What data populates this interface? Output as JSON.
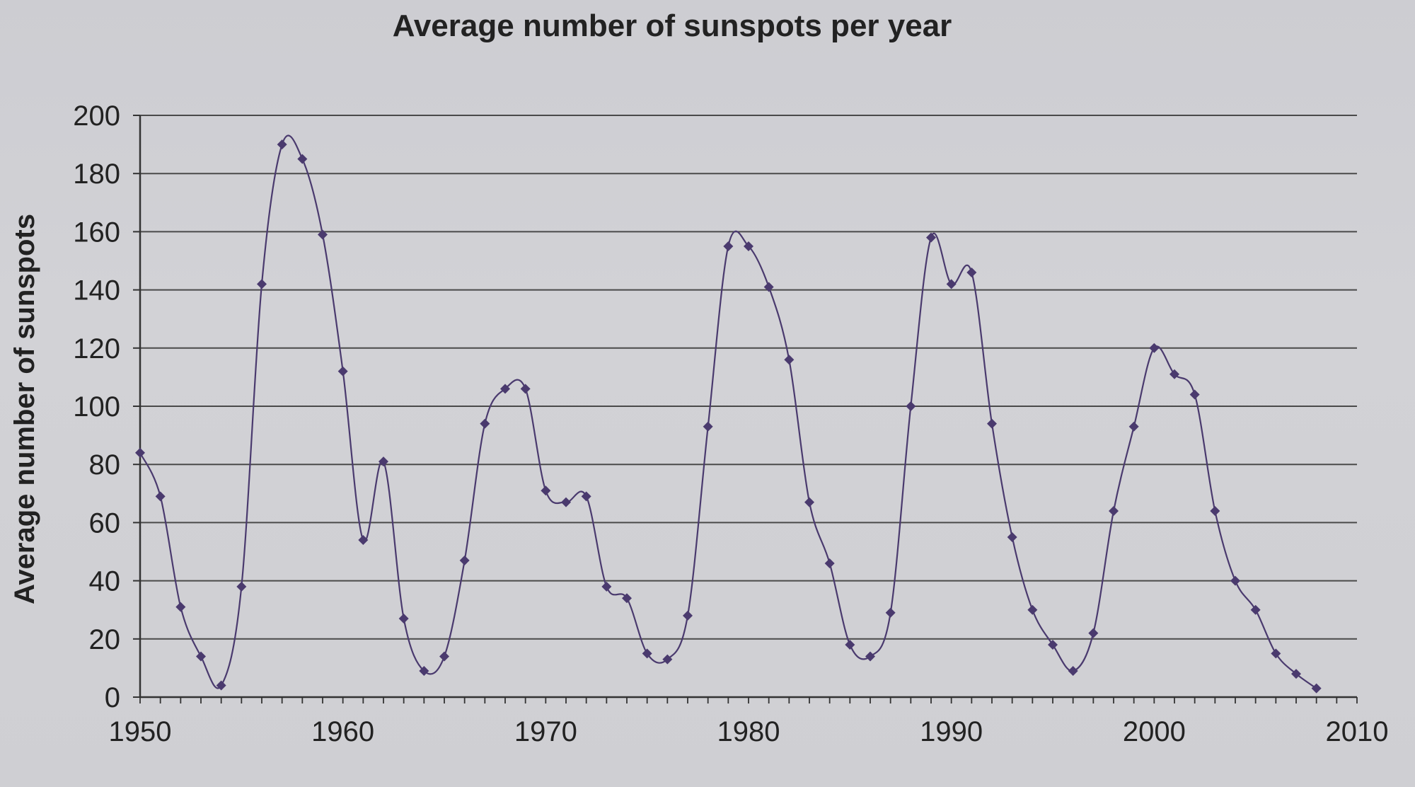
{
  "chart_data": {
    "type": "line",
    "title": "Average number of sunspots per year",
    "xlabel": "",
    "ylabel": "Average number of sunspots",
    "xlim": [
      1950,
      2010
    ],
    "ylim": [
      0,
      200
    ],
    "xticks": [
      1950,
      1960,
      1970,
      1980,
      1990,
      2000,
      2010
    ],
    "yticks": [
      0,
      20,
      40,
      60,
      80,
      100,
      120,
      140,
      160,
      180,
      200
    ],
    "grid": "horizontal",
    "legend": "none",
    "series": [
      {
        "color": "#4a3a6e",
        "points": [
          [
            1950,
            84
          ],
          [
            1951,
            69
          ],
          [
            1952,
            31
          ],
          [
            1953,
            14
          ],
          [
            1954,
            4
          ],
          [
            1955,
            38
          ],
          [
            1956,
            142
          ],
          [
            1957,
            190
          ],
          [
            1958,
            185
          ],
          [
            1959,
            159
          ],
          [
            1960,
            112
          ],
          [
            1961,
            54
          ],
          [
            1962,
            81
          ],
          [
            1963,
            27
          ],
          [
            1964,
            9
          ],
          [
            1965,
            14
          ],
          [
            1966,
            47
          ],
          [
            1967,
            94
          ],
          [
            1968,
            106
          ],
          [
            1969,
            106
          ],
          [
            1970,
            71
          ],
          [
            1971,
            67
          ],
          [
            1972,
            69
          ],
          [
            1973,
            38
          ],
          [
            1974,
            34
          ],
          [
            1975,
            15
          ],
          [
            1976,
            13
          ],
          [
            1977,
            28
          ],
          [
            1978,
            93
          ],
          [
            1979,
            155
          ],
          [
            1980,
            155
          ],
          [
            1981,
            141
          ],
          [
            1982,
            116
          ],
          [
            1983,
            67
          ],
          [
            1984,
            46
          ],
          [
            1985,
            18
          ],
          [
            1986,
            14
          ],
          [
            1987,
            29
          ],
          [
            1988,
            100
          ],
          [
            1989,
            158
          ],
          [
            1990,
            142
          ],
          [
            1991,
            146
          ],
          [
            1992,
            94
          ],
          [
            1993,
            55
          ],
          [
            1994,
            30
          ],
          [
            1995,
            18
          ],
          [
            1996,
            9
          ],
          [
            1997,
            22
          ],
          [
            1998,
            64
          ],
          [
            1999,
            93
          ],
          [
            2000,
            120
          ],
          [
            2001,
            111
          ],
          [
            2002,
            104
          ],
          [
            2003,
            64
          ],
          [
            2004,
            40
          ],
          [
            2005,
            30
          ],
          [
            2006,
            15
          ],
          [
            2007,
            8
          ],
          [
            2008,
            3
          ]
        ]
      }
    ]
  }
}
